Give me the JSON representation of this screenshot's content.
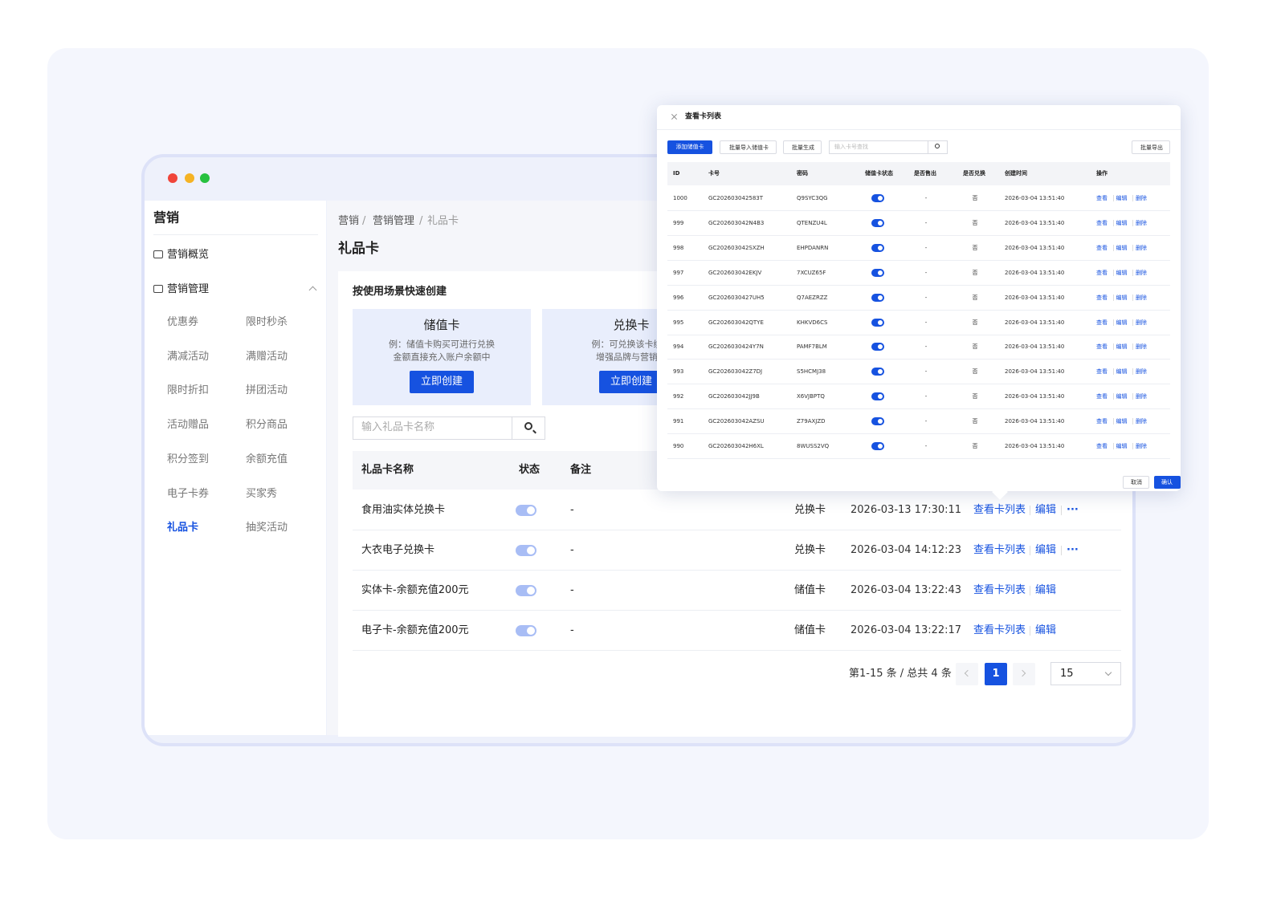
{
  "sidebar": {
    "title": "营销",
    "nav": [
      "营销概览",
      "营销管理"
    ],
    "submenu": [
      "优惠券",
      "限时秒杀",
      "满减活动",
      "满赠活动",
      "限时折扣",
      "拼团活动",
      "活动赠品",
      "积分商品",
      "积分签到",
      "余额充值",
      "电子卡券",
      "买家秀",
      "礼品卡",
      "抽奖活动"
    ],
    "active": "礼品卡"
  },
  "breadcrumb": [
    "营销",
    "营销管理",
    "礼品卡"
  ],
  "breadcrumb_separator": "/",
  "page_title": "礼品卡",
  "quick_create": {
    "title": "按使用场景快速创建",
    "cards": [
      {
        "title": "储值卡",
        "desc": [
          "例：储值卡购买可进行兑换",
          "金额直接充入账户余额中"
        ],
        "button": "立即创建"
      },
      {
        "title": "兑换卡",
        "desc": [
          "例：可兑换该卡绑定",
          "增强品牌与营销效"
        ],
        "button": "立即创建"
      }
    ]
  },
  "search": {
    "placeholder": "输入礼品卡名称"
  },
  "table": {
    "headers": [
      "礼品卡名称",
      "状态",
      "备注"
    ],
    "rows": [
      {
        "name": "食用油实体兑换卡",
        "enabled": true,
        "remark": "-",
        "type": "兑换卡",
        "created": "2026-03-13 17:30:11",
        "actions": [
          "查看卡列表",
          "编辑",
          "···"
        ]
      },
      {
        "name": "大衣电子兑换卡",
        "enabled": true,
        "remark": "-",
        "type": "兑换卡",
        "created": "2026-03-04 14:12:23",
        "actions": [
          "查看卡列表",
          "编辑",
          "···"
        ]
      },
      {
        "name": "实体卡-余额充值200元",
        "enabled": true,
        "remark": "-",
        "type": "储值卡",
        "created": "2026-03-04 13:22:43",
        "actions": [
          "查看卡列表",
          "编辑"
        ]
      },
      {
        "name": "电子卡-余额充值200元",
        "enabled": true,
        "remark": "-",
        "type": "储值卡",
        "created": "2026-03-04 13:22:17",
        "actions": [
          "查看卡列表",
          "编辑"
        ]
      }
    ]
  },
  "pagination": {
    "summary": "第1-15 条 / 总共 4 条",
    "current": "1",
    "page_size": "15"
  },
  "modal": {
    "title": "查看卡列表",
    "toolbar": [
      "添加储值卡",
      "批量导入储值卡",
      "批量生成"
    ],
    "search_placeholder": "输入卡号查找",
    "export": "批量导出",
    "headers": [
      "ID",
      "卡号",
      "密码",
      "储值卡状态",
      "是否售出",
      "是否兑换",
      "创建时间",
      "操作"
    ],
    "rows": [
      {
        "id": "1000",
        "card_no": "GC202603042583T",
        "password": "Q9SYC3QG",
        "enabled": true,
        "sold": "-",
        "redeemed": "否",
        "created": "2026-03-04 13:51:40",
        "actions": [
          "查看",
          "编辑",
          "删除"
        ]
      },
      {
        "id": "999",
        "card_no": "GC202603042N4B3",
        "password": "QTENZU4L",
        "enabled": true,
        "sold": "-",
        "redeemed": "否",
        "created": "2026-03-04 13:51:40",
        "actions": [
          "查看",
          "编辑",
          "删除"
        ]
      },
      {
        "id": "998",
        "card_no": "GC202603042SXZH",
        "password": "EHPDANRN",
        "enabled": true,
        "sold": "-",
        "redeemed": "否",
        "created": "2026-03-04 13:51:40",
        "actions": [
          "查看",
          "编辑",
          "删除"
        ]
      },
      {
        "id": "997",
        "card_no": "GC202603042EKJV",
        "password": "7XCUZ65F",
        "enabled": true,
        "sold": "-",
        "redeemed": "否",
        "created": "2026-03-04 13:51:40",
        "actions": [
          "查看",
          "编辑",
          "删除"
        ]
      },
      {
        "id": "996",
        "card_no": "GC2026030427UH5",
        "password": "Q7AEZRZZ",
        "enabled": true,
        "sold": "-",
        "redeemed": "否",
        "created": "2026-03-04 13:51:40",
        "actions": [
          "查看",
          "编辑",
          "删除"
        ]
      },
      {
        "id": "995",
        "card_no": "GC202603042QTYE",
        "password": "KHKVD6CS",
        "enabled": true,
        "sold": "-",
        "redeemed": "否",
        "created": "2026-03-04 13:51:40",
        "actions": [
          "查看",
          "编辑",
          "删除"
        ]
      },
      {
        "id": "994",
        "card_no": "GC2026030424Y7N",
        "password": "PAMF7BLM",
        "enabled": true,
        "sold": "-",
        "redeemed": "否",
        "created": "2026-03-04 13:51:40",
        "actions": [
          "查看",
          "编辑",
          "删除"
        ]
      },
      {
        "id": "993",
        "card_no": "GC202603042Z7DJ",
        "password": "S5HCMJ38",
        "enabled": true,
        "sold": "-",
        "redeemed": "否",
        "created": "2026-03-04 13:51:40",
        "actions": [
          "查看",
          "编辑",
          "删除"
        ]
      },
      {
        "id": "992",
        "card_no": "GC202603042JJ9B",
        "password": "X6VJBPTQ",
        "enabled": true,
        "sold": "-",
        "redeemed": "否",
        "created": "2026-03-04 13:51:40",
        "actions": [
          "查看",
          "编辑",
          "删除"
        ]
      },
      {
        "id": "991",
        "card_no": "GC202603042AZSU",
        "password": "Z79AXJZD",
        "enabled": true,
        "sold": "-",
        "redeemed": "否",
        "created": "2026-03-04 13:51:40",
        "actions": [
          "查看",
          "编辑",
          "删除"
        ]
      },
      {
        "id": "990",
        "card_no": "GC202603042H6XL",
        "password": "8WUSS2VQ",
        "enabled": true,
        "sold": "-",
        "redeemed": "否",
        "created": "2026-03-04 13:51:40",
        "actions": [
          "查看",
          "编辑",
          "删除"
        ]
      }
    ],
    "cancel": "取消",
    "confirm": "确认"
  }
}
